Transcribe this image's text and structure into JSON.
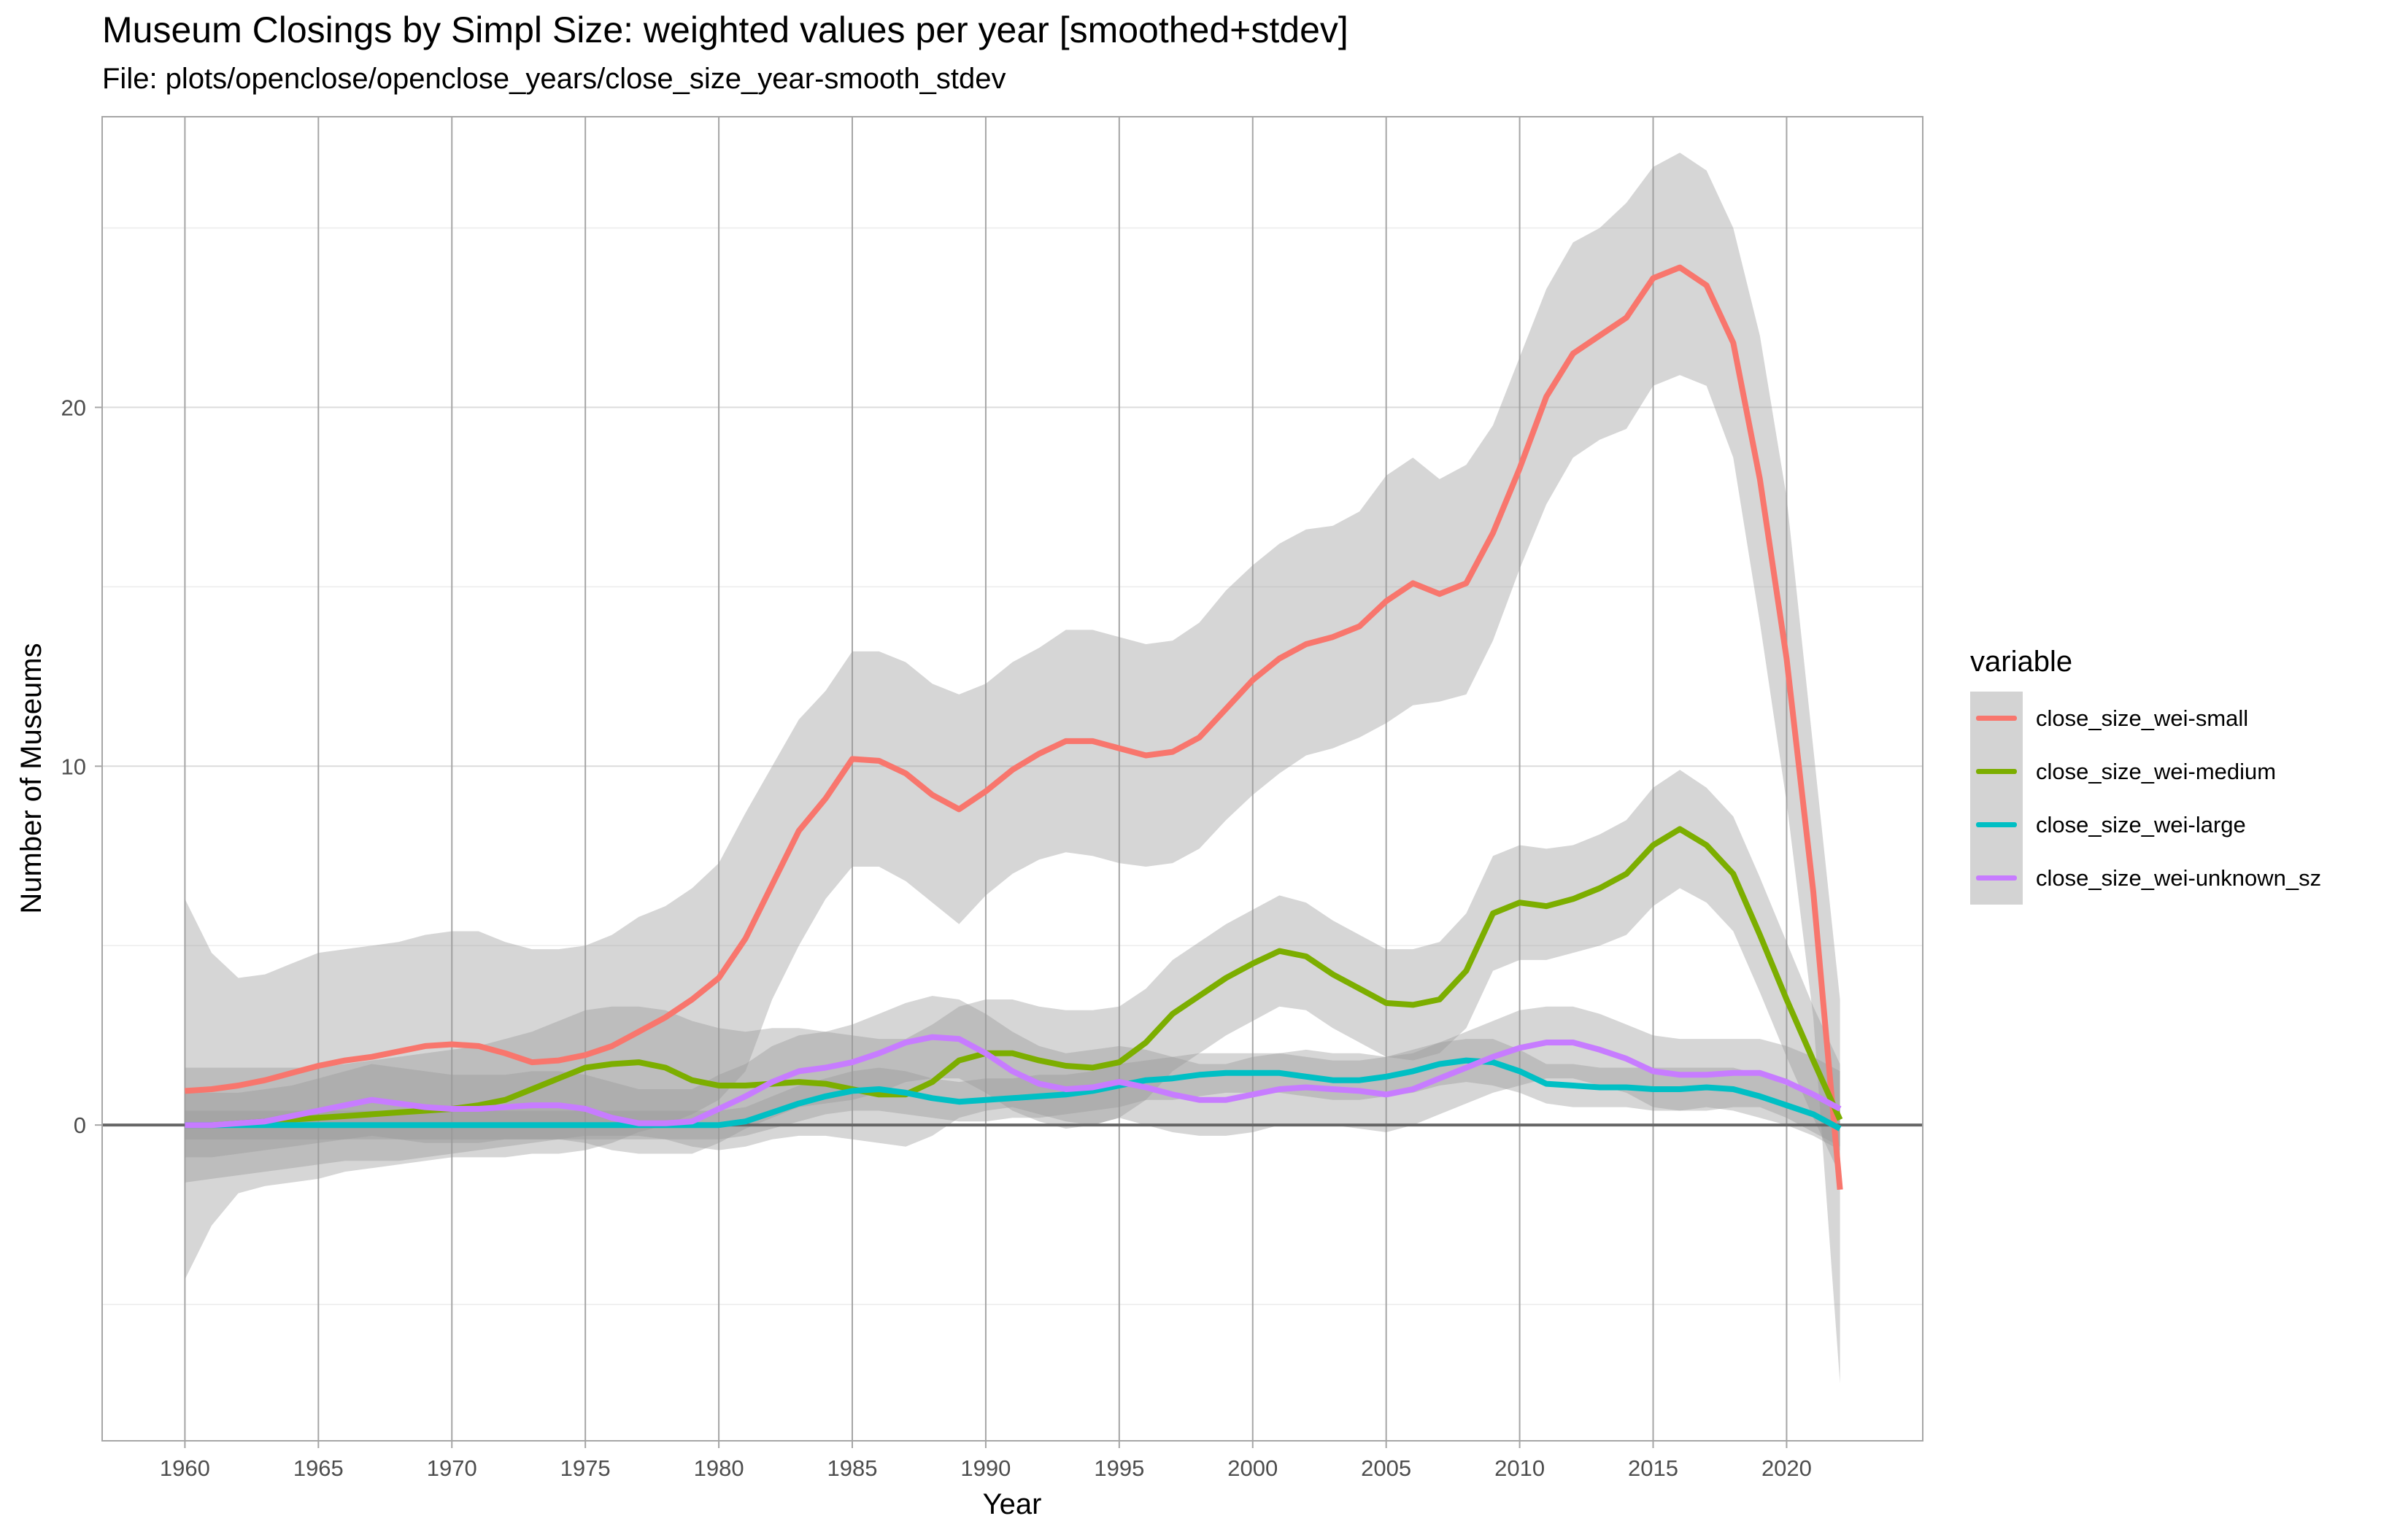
{
  "chart_data": {
    "type": "line",
    "title": "Museum Closings by Simpl Size: weighted values per year [smoothed+stdev]",
    "subtitle": "File: plots/openclose/openclose_years/close_size_year-smooth_stdev",
    "xlabel": "Year",
    "ylabel": "Number of Museums",
    "xlim": [
      1956.9,
      2025.1
    ],
    "ylim": [
      -8.8,
      28.1
    ],
    "x_ticks": [
      1960,
      1965,
      1970,
      1975,
      1980,
      1985,
      1990,
      1995,
      2000,
      2005,
      2010,
      2015,
      2020
    ],
    "y_ticks": [
      0,
      10,
      20
    ],
    "y_minor_ticks": [
      -5,
      5,
      15,
      25
    ],
    "grid": true,
    "zero_line": true,
    "legend": {
      "title": "variable",
      "position": "right"
    },
    "x": [
      1960,
      1961,
      1962,
      1963,
      1964,
      1965,
      1966,
      1967,
      1968,
      1969,
      1970,
      1971,
      1972,
      1973,
      1974,
      1975,
      1976,
      1977,
      1978,
      1979,
      1980,
      1981,
      1982,
      1983,
      1984,
      1985,
      1986,
      1987,
      1988,
      1989,
      1990,
      1991,
      1992,
      1993,
      1994,
      1995,
      1996,
      1997,
      1998,
      1999,
      2000,
      2001,
      2002,
      2003,
      2004,
      2005,
      2006,
      2007,
      2008,
      2009,
      2010,
      2011,
      2012,
      2013,
      2014,
      2015,
      2016,
      2017,
      2018,
      2019,
      2020,
      2021,
      2022
    ],
    "series": [
      {
        "name": "close_size_wei-small",
        "color": "#F8766D",
        "values": [
          0.95,
          1.0,
          1.1,
          1.25,
          1.45,
          1.65,
          1.8,
          1.9,
          2.05,
          2.2,
          2.25,
          2.2,
          2.0,
          1.75,
          1.8,
          1.95,
          2.2,
          2.6,
          3.0,
          3.5,
          4.1,
          5.2,
          6.7,
          8.2,
          9.1,
          10.2,
          10.15,
          9.8,
          9.2,
          8.8,
          9.3,
          9.9,
          10.35,
          10.7,
          10.7,
          10.5,
          10.3,
          10.4,
          10.8,
          11.6,
          12.4,
          13.0,
          13.4,
          13.6,
          13.9,
          14.6,
          15.1,
          14.8,
          15.1,
          16.5,
          18.3,
          20.3,
          21.5,
          22.0,
          22.5,
          23.6,
          23.9,
          23.4,
          21.8,
          18.0,
          13.0,
          6.5,
          -1.8
        ]
      },
      {
        "name": "close_size_wei-medium",
        "color": "#7CAE00",
        "values": [
          0.0,
          0.0,
          0.05,
          0.1,
          0.15,
          0.2,
          0.25,
          0.3,
          0.35,
          0.4,
          0.45,
          0.55,
          0.7,
          1.0,
          1.3,
          1.6,
          1.7,
          1.75,
          1.6,
          1.25,
          1.1,
          1.1,
          1.15,
          1.2,
          1.15,
          1.0,
          0.85,
          0.85,
          1.2,
          1.8,
          2.0,
          2.0,
          1.8,
          1.65,
          1.6,
          1.75,
          2.3,
          3.1,
          3.6,
          4.1,
          4.5,
          4.85,
          4.7,
          4.2,
          3.8,
          3.4,
          3.35,
          3.5,
          4.3,
          5.9,
          6.2,
          6.1,
          6.3,
          6.6,
          7.0,
          7.8,
          8.25,
          7.8,
          7.0,
          5.3,
          3.5,
          1.8,
          0.15
        ]
      },
      {
        "name": "close_size_wei-large",
        "color": "#00BFC4",
        "values": [
          0.0,
          0.0,
          0.0,
          0.0,
          0.0,
          0.0,
          0.0,
          0.0,
          0.0,
          0.0,
          0.0,
          0.0,
          0.0,
          0.0,
          0.0,
          0.0,
          0.0,
          0.0,
          0.0,
          0.0,
          0.0,
          0.1,
          0.35,
          0.6,
          0.8,
          0.95,
          1.0,
          0.9,
          0.75,
          0.65,
          0.7,
          0.75,
          0.8,
          0.85,
          0.95,
          1.1,
          1.25,
          1.3,
          1.4,
          1.45,
          1.45,
          1.45,
          1.35,
          1.25,
          1.25,
          1.35,
          1.5,
          1.7,
          1.8,
          1.75,
          1.5,
          1.15,
          1.1,
          1.05,
          1.05,
          1.0,
          1.0,
          1.05,
          1.0,
          0.8,
          0.55,
          0.3,
          -0.1
        ]
      },
      {
        "name": "close_size_wei-unknown_sz",
        "color": "#C77CFF",
        "values": [
          0.0,
          0.0,
          0.05,
          0.1,
          0.25,
          0.4,
          0.55,
          0.7,
          0.6,
          0.5,
          0.45,
          0.45,
          0.5,
          0.55,
          0.55,
          0.45,
          0.2,
          0.05,
          0.05,
          0.1,
          0.45,
          0.8,
          1.2,
          1.5,
          1.6,
          1.75,
          2.0,
          2.3,
          2.45,
          2.4,
          2.0,
          1.5,
          1.15,
          1.0,
          1.05,
          1.2,
          1.05,
          0.85,
          0.7,
          0.7,
          0.85,
          1.0,
          1.05,
          1.0,
          0.95,
          0.85,
          1.0,
          1.3,
          1.6,
          1.9,
          2.15,
          2.3,
          2.3,
          2.1,
          1.85,
          1.5,
          1.4,
          1.4,
          1.45,
          1.45,
          1.2,
          0.85,
          0.45
        ]
      }
    ],
    "bands": [
      {
        "series": "close_size_wei-small",
        "lower": [
          -4.3,
          -2.8,
          -1.9,
          -1.7,
          -1.6,
          -1.5,
          -1.3,
          -1.2,
          -1.1,
          -1.0,
          -0.9,
          -0.9,
          -0.9,
          -0.8,
          -0.8,
          -0.7,
          -0.5,
          -0.2,
          0.0,
          0.3,
          0.7,
          1.5,
          3.5,
          5.0,
          6.3,
          7.2,
          7.2,
          6.8,
          6.2,
          5.6,
          6.4,
          7.0,
          7.4,
          7.6,
          7.5,
          7.3,
          7.2,
          7.3,
          7.7,
          8.5,
          9.2,
          9.8,
          10.3,
          10.5,
          10.8,
          11.2,
          11.7,
          11.8,
          12.0,
          13.5,
          15.5,
          17.3,
          18.6,
          19.1,
          19.4,
          20.6,
          20.9,
          20.6,
          18.6,
          14.0,
          9.0,
          3.0,
          -7.2
        ],
        "upper": [
          6.3,
          4.8,
          4.1,
          4.2,
          4.5,
          4.8,
          4.9,
          5.0,
          5.1,
          5.3,
          5.4,
          5.4,
          5.1,
          4.9,
          4.9,
          5.0,
          5.3,
          5.8,
          6.1,
          6.6,
          7.3,
          8.7,
          10.0,
          11.3,
          12.1,
          13.2,
          13.2,
          12.9,
          12.3,
          12.0,
          12.3,
          12.9,
          13.3,
          13.8,
          13.8,
          13.6,
          13.4,
          13.5,
          14.0,
          14.9,
          15.6,
          16.2,
          16.6,
          16.7,
          17.1,
          18.1,
          18.6,
          18.0,
          18.4,
          19.5,
          21.4,
          23.3,
          24.6,
          25.0,
          25.7,
          26.7,
          27.1,
          26.6,
          25.0,
          22.0,
          17.5,
          10.5,
          3.5
        ]
      },
      {
        "series": "close_size_wei-medium",
        "lower": [
          -1.6,
          -1.5,
          -1.4,
          -1.3,
          -1.2,
          -1.1,
          -1.0,
          -1.0,
          -1.0,
          -0.9,
          -0.8,
          -0.7,
          -0.6,
          -0.5,
          -0.4,
          -0.3,
          -0.3,
          -0.3,
          -0.4,
          -0.6,
          -0.7,
          -0.6,
          -0.4,
          -0.3,
          -0.3,
          -0.4,
          -0.5,
          -0.6,
          -0.3,
          0.2,
          0.4,
          0.5,
          0.3,
          0.1,
          0.0,
          0.2,
          0.7,
          1.5,
          2.0,
          2.5,
          2.9,
          3.3,
          3.2,
          2.7,
          2.3,
          1.9,
          1.8,
          2.0,
          2.7,
          4.3,
          4.6,
          4.6,
          4.8,
          5.0,
          5.3,
          6.1,
          6.6,
          6.2,
          5.4,
          3.7,
          1.9,
          0.2,
          -1.4
        ],
        "upper": [
          1.6,
          1.6,
          1.6,
          1.6,
          1.6,
          1.6,
          1.7,
          1.8,
          1.9,
          2.0,
          2.1,
          2.2,
          2.4,
          2.6,
          2.9,
          3.2,
          3.3,
          3.3,
          3.2,
          2.9,
          2.7,
          2.6,
          2.7,
          2.7,
          2.6,
          2.5,
          2.4,
          2.4,
          2.8,
          3.3,
          3.5,
          3.5,
          3.3,
          3.2,
          3.2,
          3.3,
          3.8,
          4.6,
          5.1,
          5.6,
          6.0,
          6.4,
          6.2,
          5.7,
          5.3,
          4.9,
          4.9,
          5.1,
          5.9,
          7.5,
          7.8,
          7.7,
          7.8,
          8.1,
          8.5,
          9.4,
          9.9,
          9.4,
          8.6,
          6.9,
          5.1,
          3.3,
          1.7
        ]
      },
      {
        "series": "close_size_wei-large",
        "lower": [
          -0.4,
          -0.4,
          -0.4,
          -0.4,
          -0.4,
          -0.4,
          -0.4,
          -0.4,
          -0.4,
          -0.4,
          -0.4,
          -0.4,
          -0.4,
          -0.4,
          -0.4,
          -0.4,
          -0.4,
          -0.4,
          -0.4,
          -0.4,
          -0.4,
          -0.3,
          -0.1,
          0.1,
          0.3,
          0.4,
          0.4,
          0.3,
          0.2,
          0.1,
          0.1,
          0.2,
          0.2,
          0.3,
          0.4,
          0.5,
          0.7,
          0.7,
          0.8,
          0.9,
          0.9,
          0.9,
          0.8,
          0.7,
          0.7,
          0.8,
          0.9,
          1.1,
          1.2,
          1.1,
          0.9,
          0.6,
          0.5,
          0.5,
          0.5,
          0.4,
          0.4,
          0.5,
          0.4,
          0.2,
          0.0,
          -0.3,
          -0.7
        ],
        "upper": [
          0.4,
          0.4,
          0.4,
          0.4,
          0.4,
          0.4,
          0.4,
          0.4,
          0.4,
          0.4,
          0.4,
          0.4,
          0.4,
          0.4,
          0.4,
          0.4,
          0.4,
          0.4,
          0.4,
          0.4,
          0.4,
          0.5,
          0.8,
          1.1,
          1.3,
          1.5,
          1.6,
          1.5,
          1.3,
          1.2,
          1.3,
          1.3,
          1.4,
          1.4,
          1.5,
          1.7,
          1.8,
          1.9,
          2.0,
          2.0,
          2.0,
          2.0,
          1.9,
          1.8,
          1.8,
          1.9,
          2.1,
          2.3,
          2.4,
          2.4,
          2.1,
          1.7,
          1.7,
          1.6,
          1.6,
          1.6,
          1.6,
          1.6,
          1.6,
          1.4,
          1.1,
          0.9,
          0.5
        ]
      },
      {
        "series": "close_size_wei-unknown_sz",
        "lower": [
          -0.9,
          -0.9,
          -0.8,
          -0.7,
          -0.6,
          -0.5,
          -0.4,
          -0.3,
          -0.4,
          -0.5,
          -0.5,
          -0.5,
          -0.4,
          -0.4,
          -0.4,
          -0.5,
          -0.7,
          -0.8,
          -0.8,
          -0.8,
          -0.5,
          -0.1,
          0.2,
          0.5,
          0.6,
          0.7,
          0.9,
          1.2,
          1.3,
          1.3,
          0.9,
          0.4,
          0.1,
          -0.1,
          0.0,
          0.2,
          0.0,
          -0.2,
          -0.3,
          -0.3,
          -0.2,
          0.0,
          0.0,
          0.0,
          -0.1,
          -0.2,
          0.0,
          0.3,
          0.6,
          0.9,
          1.1,
          1.3,
          1.3,
          1.1,
          0.9,
          0.5,
          0.4,
          0.4,
          0.5,
          0.5,
          0.2,
          -0.2,
          -0.6
        ],
        "upper": [
          0.9,
          0.9,
          0.9,
          1.0,
          1.1,
          1.3,
          1.5,
          1.7,
          1.6,
          1.5,
          1.4,
          1.4,
          1.4,
          1.5,
          1.5,
          1.4,
          1.2,
          1.0,
          1.0,
          1.0,
          1.4,
          1.7,
          2.2,
          2.5,
          2.6,
          2.8,
          3.1,
          3.4,
          3.6,
          3.5,
          3.1,
          2.6,
          2.2,
          2.0,
          2.1,
          2.2,
          2.1,
          1.9,
          1.7,
          1.7,
          1.9,
          2.0,
          2.1,
          2.0,
          2.0,
          1.9,
          2.0,
          2.3,
          2.6,
          2.9,
          3.2,
          3.3,
          3.3,
          3.1,
          2.8,
          2.5,
          2.4,
          2.4,
          2.4,
          2.4,
          2.2,
          1.9,
          1.5
        ]
      }
    ]
  }
}
